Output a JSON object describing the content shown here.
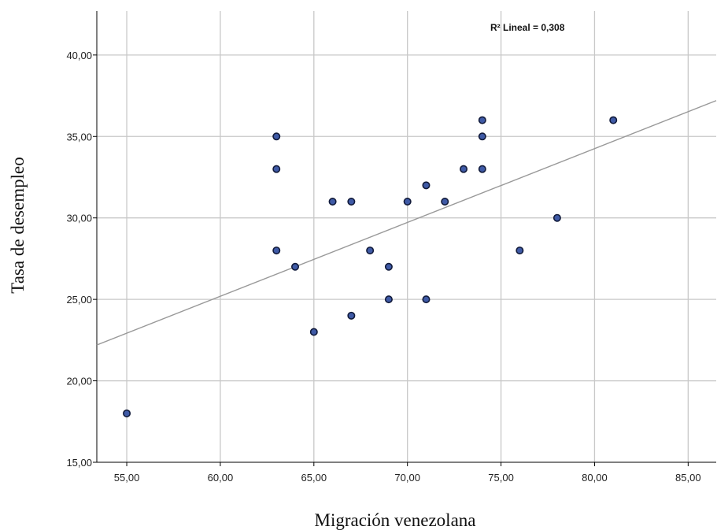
{
  "chart_data": {
    "type": "scatter",
    "title": "",
    "xlabel": "Migración venezolana",
    "ylabel": "Tasa de desempleo",
    "xlim": [
      53.4,
      86.5
    ],
    "ylim": [
      15,
      42.7
    ],
    "xticks": [
      55,
      60,
      65,
      70,
      75,
      80,
      85
    ],
    "yticks": [
      15,
      20,
      25,
      30,
      35,
      40
    ],
    "xtick_labels": [
      "55,00",
      "60,00",
      "65,00",
      "70,00",
      "75,00",
      "80,00",
      "85,00"
    ],
    "ytick_labels": [
      "15,00",
      "20,00",
      "25,00",
      "30,00",
      "35,00",
      "40,00"
    ],
    "grid": true,
    "annotation": "R² Lineal = 0,308",
    "fit_line": {
      "x": [
        53.4,
        86.5
      ],
      "y": [
        22.2,
        37.2
      ]
    },
    "point_color": "#3f5aa6",
    "points": [
      {
        "x": 55,
        "y": 18
      },
      {
        "x": 63,
        "y": 35
      },
      {
        "x": 63,
        "y": 33
      },
      {
        "x": 63,
        "y": 28
      },
      {
        "x": 64,
        "y": 27
      },
      {
        "x": 65,
        "y": 23
      },
      {
        "x": 66,
        "y": 31
      },
      {
        "x": 67,
        "y": 31
      },
      {
        "x": 67,
        "y": 24
      },
      {
        "x": 68,
        "y": 28
      },
      {
        "x": 69,
        "y": 27
      },
      {
        "x": 69,
        "y": 25
      },
      {
        "x": 70,
        "y": 31
      },
      {
        "x": 71,
        "y": 32
      },
      {
        "x": 71,
        "y": 25
      },
      {
        "x": 72,
        "y": 31
      },
      {
        "x": 73,
        "y": 33
      },
      {
        "x": 74,
        "y": 36
      },
      {
        "x": 74,
        "y": 35
      },
      {
        "x": 74,
        "y": 33
      },
      {
        "x": 76,
        "y": 28
      },
      {
        "x": 78,
        "y": 30
      },
      {
        "x": 81,
        "y": 36
      }
    ]
  }
}
